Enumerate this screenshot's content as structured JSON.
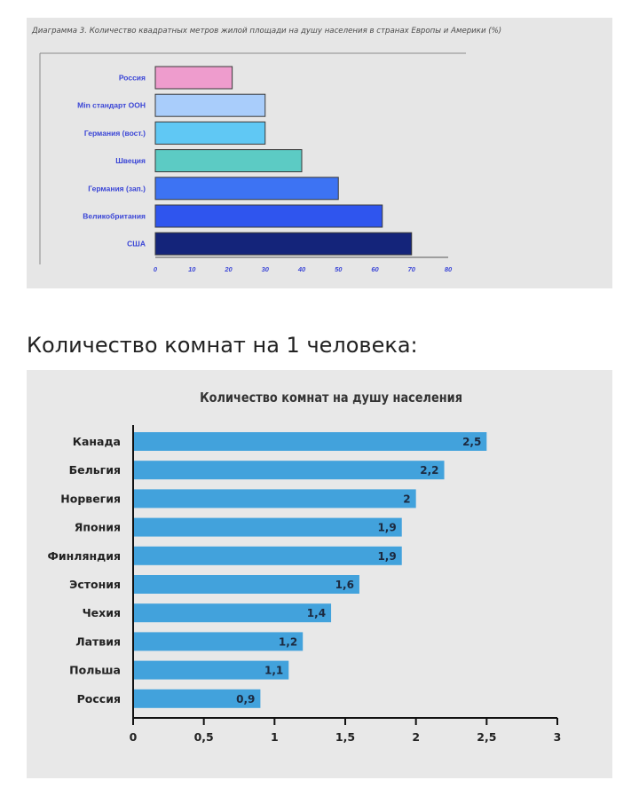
{
  "chart_data": [
    {
      "type": "bar",
      "orientation": "horizontal",
      "title": "Диаграмма 3. Количество квадратных метров жилой площади на душу населения в странах Европы и Америки (%)",
      "categories": [
        "Россия",
        "Min стандарт ООН",
        "Германия (вост.)",
        "Швеция",
        "Германия (зап.)",
        "Великобритания",
        "США"
      ],
      "values": [
        21,
        30,
        30,
        40,
        50,
        62,
        70
      ],
      "bar_colors": [
        "#ee9ccd",
        "#a9cdfb",
        "#60c8f4",
        "#5ccbc4",
        "#3d73f3",
        "#2f55ee",
        "#14247a"
      ],
      "xlim": [
        0,
        80
      ],
      "xticks": [
        0,
        10,
        20,
        30,
        40,
        50,
        60,
        70,
        80
      ],
      "grid": false
    },
    {
      "type": "bar",
      "orientation": "horizontal",
      "title": "Количество комнат на душу населения",
      "categories": [
        "Канада",
        "Бельгия",
        "Норвегия",
        "Япония",
        "Финляндия",
        "Эстония",
        "Чехия",
        "Латвия",
        "Польша",
        "Россия"
      ],
      "values": [
        2.5,
        2.2,
        2,
        1.9,
        1.9,
        1.6,
        1.4,
        1.2,
        1.1,
        0.9
      ],
      "value_labels": [
        "2,5",
        "2,2",
        "2",
        "1,9",
        "1,9",
        "1,6",
        "1,4",
        "1,2",
        "1,1",
        "0,9"
      ],
      "bar_color": "#42a2dc",
      "xlim": [
        0,
        3
      ],
      "xticks": [
        0,
        0.5,
        1,
        1.5,
        2,
        2.5,
        3
      ],
      "xtick_labels": [
        "0",
        "0,5",
        "1",
        "1,5",
        "2",
        "2,5",
        "3"
      ],
      "grid": false
    }
  ],
  "section_heading": "Количество комнат на 1 человека:"
}
